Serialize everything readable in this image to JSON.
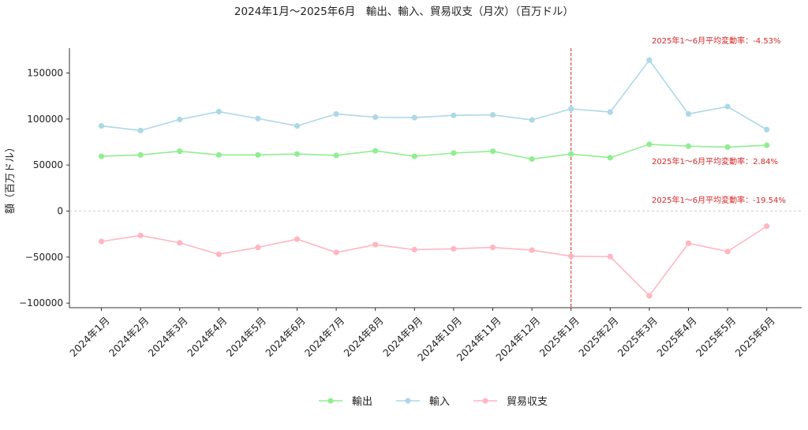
{
  "chart_data": {
    "type": "line",
    "title": "2024年1月～2025年6月　輸出、輸入、貿易収支（月次）（百万ドル）",
    "xlabel": "",
    "ylabel": "額（百万ドル）",
    "ylim": [
      -105000,
      177000
    ],
    "yticks": [
      150000,
      100000,
      50000,
      0,
      -50000,
      -100000
    ],
    "ytick_labels": [
      "150000",
      "100000",
      "50000",
      "0",
      "−50000",
      "−100000"
    ],
    "categories": [
      "2024年1月",
      "2024年2月",
      "2024年3月",
      "2024年4月",
      "2024年5月",
      "2024年6月",
      "2024年7月",
      "2024年8月",
      "2024年9月",
      "2024年10月",
      "2024年11月",
      "2024年12月",
      "2025年1月",
      "2025年2月",
      "2025年3月",
      "2025年4月",
      "2025年5月",
      "2025年6月"
    ],
    "series": [
      {
        "name": "輸出",
        "color": "#90ee90",
        "values": [
          59500,
          61000,
          65000,
          61000,
          61000,
          62000,
          60500,
          65500,
          59500,
          63000,
          65000,
          56500,
          62000,
          58000,
          72500,
          70500,
          69500,
          71500
        ]
      },
      {
        "name": "輸入",
        "color": "#add8e6",
        "values": [
          92500,
          87500,
          99500,
          108000,
          100500,
          92500,
          105500,
          102000,
          101500,
          104000,
          104500,
          99000,
          111000,
          107500,
          164000,
          105500,
          113500,
          88500
        ]
      },
      {
        "name": "貿易収支",
        "color": "#ffb6c1",
        "values": [
          -33000,
          -26500,
          -34500,
          -47000,
          -39500,
          -30500,
          -45000,
          -36500,
          -42000,
          -41000,
          -39500,
          -42500,
          -49000,
          -49500,
          -92000,
          -35000,
          -44000,
          -16500
        ]
      }
    ],
    "vline": {
      "category": "2025年1月",
      "color": "#d62728",
      "style": "dashed"
    },
    "hline": {
      "value": 0,
      "style": "dashed",
      "color": "#cccccc"
    },
    "annotations": [
      {
        "text": "2025年1～6月平均変動率：-4.53%",
        "series": "輸入"
      },
      {
        "text": "2025年1～6月平均変動率：2.84%",
        "series": "輸出"
      },
      {
        "text": "2025年1～6月平均変動率：-19.54%",
        "series": "貿易収支"
      }
    ],
    "legend_position": "bottom-center",
    "grid": false
  }
}
